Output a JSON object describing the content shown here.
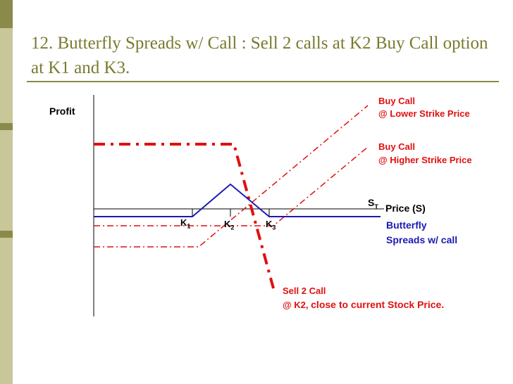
{
  "slide": {
    "title": "12. Butterfly Spreads w/ Call : Sell 2 calls at K2 Buy Call option at K1 and K3."
  },
  "colors": {
    "sidebar": "#c7c79a",
    "sidebar_accent": "#8a8a4a",
    "title_rule": "#8a8a4a",
    "title_text": "#7a7a30",
    "call_lines": "#e01010",
    "butterfly_line": "#1a1ab4",
    "axis": "#000000"
  },
  "diagram": {
    "y_axis_label": "Profit",
    "x_axis_label": "Price (S)",
    "x_marker": {
      "main": "S",
      "sub": "T"
    },
    "strikes": [
      {
        "main": "K",
        "sub": "1"
      },
      {
        "main": "K",
        "sub": "2"
      },
      {
        "main": "K",
        "sub": "3"
      }
    ],
    "legend": {
      "buy_lower": [
        "Buy Call",
        "@ Lower Strike Price"
      ],
      "buy_higher": [
        "Buy Call",
        "@ Higher Strike Price"
      ],
      "butterfly": [
        "Butterfly",
        "Spreads w/ call"
      ],
      "sell2": {
        "line1": "Sell 2 Call",
        "line2_prefix": "@ K2, ",
        "line2_emphasis": "close to current Stock Price."
      }
    }
  }
}
